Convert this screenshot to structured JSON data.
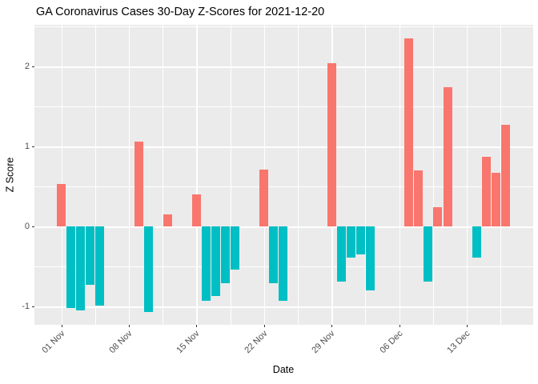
{
  "chart_data": {
    "type": "bar",
    "title": "GA Coronavirus Cases 30-Day Z-Scores for 2021-12-20",
    "xlabel": "Date",
    "ylabel": "Z Score",
    "legend": "none",
    "grid": "on",
    "panel_bg": "#EBEBEB",
    "grid_color": "#FFFFFF",
    "tick_text_color": "#4D4D4D",
    "axis_title_color": "#000000",
    "tick_mark_color": "#333333",
    "positive_color": "#F8766D",
    "negative_color": "#00BFC4",
    "ylim": [
      -1.23,
      2.52
    ],
    "xlim_dates": [
      "2021-10-29",
      "2021-12-20"
    ],
    "y_ticks": [
      {
        "value": 2,
        "label": "2"
      },
      {
        "value": 1,
        "label": "1"
      },
      {
        "value": 0,
        "label": "0"
      },
      {
        "value": -1,
        "label": "-1"
      }
    ],
    "x_ticks": [
      {
        "date": "2021-11-01",
        "label": "01 Nov"
      },
      {
        "date": "2021-11-08",
        "label": "08 Nov"
      },
      {
        "date": "2021-11-15",
        "label": "15 Nov"
      },
      {
        "date": "2021-11-22",
        "label": "22 Nov"
      },
      {
        "date": "2021-11-29",
        "label": "29 Nov"
      },
      {
        "date": "2021-12-06",
        "label": "06 Dec"
      },
      {
        "date": "2021-12-13",
        "label": "13 Dec"
      }
    ],
    "points": [
      {
        "date": "2021-11-01",
        "value": 0.53
      },
      {
        "date": "2021-11-02",
        "value": -1.02
      },
      {
        "date": "2021-11-03",
        "value": -1.05
      },
      {
        "date": "2021-11-04",
        "value": -0.73
      },
      {
        "date": "2021-11-05",
        "value": -0.99
      },
      {
        "date": "2021-11-09",
        "value": 1.06
      },
      {
        "date": "2021-11-10",
        "value": -1.07
      },
      {
        "date": "2021-11-12",
        "value": 0.15
      },
      {
        "date": "2021-11-15",
        "value": 0.4
      },
      {
        "date": "2021-11-16",
        "value": -0.93
      },
      {
        "date": "2021-11-17",
        "value": -0.87
      },
      {
        "date": "2021-11-18",
        "value": -0.71
      },
      {
        "date": "2021-11-19",
        "value": -0.54
      },
      {
        "date": "2021-11-22",
        "value": 0.71
      },
      {
        "date": "2021-11-23",
        "value": -0.71
      },
      {
        "date": "2021-11-24",
        "value": -0.93
      },
      {
        "date": "2021-11-29",
        "value": 2.04
      },
      {
        "date": "2021-11-30",
        "value": -0.69
      },
      {
        "date": "2021-12-01",
        "value": -0.39
      },
      {
        "date": "2021-12-02",
        "value": -0.35
      },
      {
        "date": "2021-12-03",
        "value": -0.8
      },
      {
        "date": "2021-12-07",
        "value": 2.35
      },
      {
        "date": "2021-12-08",
        "value": 0.7
      },
      {
        "date": "2021-12-09",
        "value": -0.69
      },
      {
        "date": "2021-12-10",
        "value": 0.24
      },
      {
        "date": "2021-12-11",
        "value": 1.74
      },
      {
        "date": "2021-12-14",
        "value": -0.39
      },
      {
        "date": "2021-12-15",
        "value": 0.87
      },
      {
        "date": "2021-12-16",
        "value": 0.67
      },
      {
        "date": "2021-12-17",
        "value": 1.27
      }
    ]
  }
}
